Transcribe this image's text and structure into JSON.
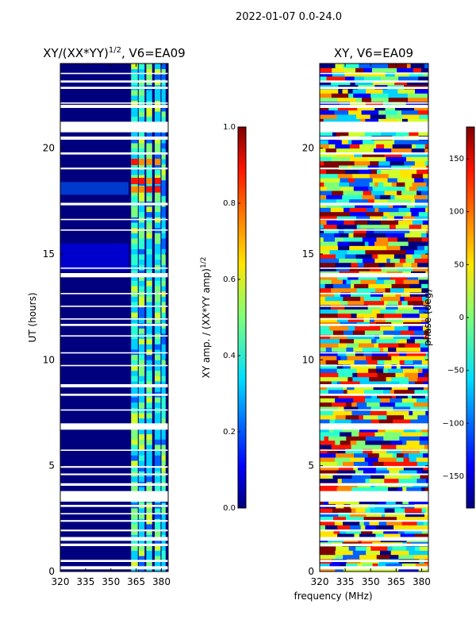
{
  "figure": {
    "suptitle": "2022-01-07 0.0-24.0"
  },
  "chart_data": [
    {
      "type": "heatmap",
      "title_main": "XY/(XX*YY)",
      "title_sup": "1/2",
      "title_suffix": ", V6=EA09",
      "ylabel": "UT (hours)",
      "xlim": [
        320,
        384
      ],
      "ylim": [
        0,
        24
      ],
      "x_ticks": [
        320,
        335,
        350,
        365,
        380
      ],
      "y_ticks": [
        0,
        5,
        10,
        15,
        20
      ],
      "colorbar": {
        "label": "XY amp. / (XX*YY amp)^1/2",
        "label_main": "XY amp. / (XX*YY amp)",
        "label_sup": "1/2",
        "range": [
          0.0,
          1.0
        ],
        "ticks": [
          0.0,
          0.2,
          0.4,
          0.6,
          0.8,
          1.0
        ],
        "tick_labels": [
          "0.0",
          "0.2",
          "0.4",
          "0.6",
          "0.8",
          "1.0"
        ]
      }
    },
    {
      "type": "heatmap",
      "title": "XY, V6=EA09",
      "xlim": [
        320,
        384
      ],
      "ylim": [
        0,
        24
      ],
      "x_ticks": [
        320,
        335,
        350,
        365,
        380
      ],
      "y_ticks": [
        0,
        5,
        10,
        15,
        20
      ],
      "colorbar": {
        "label": "phase (deg)",
        "range": [
          -180,
          180
        ],
        "ticks": [
          -150,
          -100,
          -50,
          0,
          50,
          100,
          150
        ],
        "tick_labels": [
          "−150",
          "−100",
          "−50",
          "0",
          "50",
          "100",
          "150"
        ]
      }
    }
  ],
  "shared": {
    "xlabel": "frequency (MHz)"
  }
}
